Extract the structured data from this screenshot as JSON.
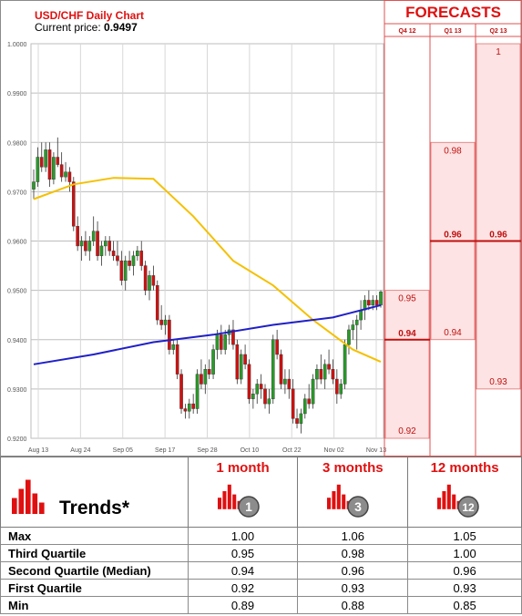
{
  "header": {
    "title": "USD/CHF Daily Chart",
    "price_label": "Current price:",
    "price_value": "0.9497",
    "forecasts_title": "FORECASTS"
  },
  "chart_data": {
    "type": "candlestick",
    "ylim": [
      0.92,
      1.0
    ],
    "y_ticks": [
      "1.0000",
      "0.9900",
      "0.9800",
      "0.9700",
      "0.9600",
      "0.9500",
      "0.9400",
      "0.9300",
      "0.9200"
    ],
    "x_ticks": [
      "Aug 13",
      "Aug 24",
      "Sep 05",
      "Sep 17",
      "Sep 28",
      "Oct 10",
      "Oct 22",
      "Nov 02",
      "Nov 13"
    ],
    "candles": [
      {
        "o": 0.9705,
        "h": 0.9745,
        "l": 0.9685,
        "c": 0.972
      },
      {
        "o": 0.972,
        "h": 0.979,
        "l": 0.971,
        "c": 0.977
      },
      {
        "o": 0.977,
        "h": 0.98,
        "l": 0.974,
        "c": 0.975
      },
      {
        "o": 0.975,
        "h": 0.98,
        "l": 0.974,
        "c": 0.9785
      },
      {
        "o": 0.9785,
        "h": 0.98,
        "l": 0.971,
        "c": 0.9725
      },
      {
        "o": 0.9725,
        "h": 0.978,
        "l": 0.9715,
        "c": 0.977
      },
      {
        "o": 0.977,
        "h": 0.981,
        "l": 0.975,
        "c": 0.9755
      },
      {
        "o": 0.9755,
        "h": 0.978,
        "l": 0.972,
        "c": 0.973
      },
      {
        "o": 0.973,
        "h": 0.976,
        "l": 0.972,
        "c": 0.974
      },
      {
        "o": 0.974,
        "h": 0.975,
        "l": 0.97,
        "c": 0.972
      },
      {
        "o": 0.972,
        "h": 0.973,
        "l": 0.962,
        "c": 0.963
      },
      {
        "o": 0.963,
        "h": 0.965,
        "l": 0.958,
        "c": 0.959
      },
      {
        "o": 0.959,
        "h": 0.961,
        "l": 0.956,
        "c": 0.96
      },
      {
        "o": 0.96,
        "h": 0.962,
        "l": 0.957,
        "c": 0.958
      },
      {
        "o": 0.958,
        "h": 0.961,
        "l": 0.956,
        "c": 0.96
      },
      {
        "o": 0.96,
        "h": 0.965,
        "l": 0.959,
        "c": 0.962
      },
      {
        "o": 0.962,
        "h": 0.964,
        "l": 0.956,
        "c": 0.957
      },
      {
        "o": 0.957,
        "h": 0.96,
        "l": 0.955,
        "c": 0.959
      },
      {
        "o": 0.959,
        "h": 0.961,
        "l": 0.957,
        "c": 0.96
      },
      {
        "o": 0.96,
        "h": 0.961,
        "l": 0.957,
        "c": 0.958
      },
      {
        "o": 0.958,
        "h": 0.96,
        "l": 0.956,
        "c": 0.957
      },
      {
        "o": 0.957,
        "h": 0.96,
        "l": 0.955,
        "c": 0.956
      },
      {
        "o": 0.956,
        "h": 0.958,
        "l": 0.951,
        "c": 0.952
      },
      {
        "o": 0.952,
        "h": 0.957,
        "l": 0.95,
        "c": 0.956
      },
      {
        "o": 0.956,
        "h": 0.958,
        "l": 0.954,
        "c": 0.955
      },
      {
        "o": 0.955,
        "h": 0.958,
        "l": 0.953,
        "c": 0.957
      },
      {
        "o": 0.957,
        "h": 0.959,
        "l": 0.956,
        "c": 0.958
      },
      {
        "o": 0.958,
        "h": 0.96,
        "l": 0.954,
        "c": 0.955
      },
      {
        "o": 0.955,
        "h": 0.956,
        "l": 0.949,
        "c": 0.95
      },
      {
        "o": 0.95,
        "h": 0.954,
        "l": 0.948,
        "c": 0.953
      },
      {
        "o": 0.953,
        "h": 0.955,
        "l": 0.95,
        "c": 0.951
      },
      {
        "o": 0.951,
        "h": 0.952,
        "l": 0.943,
        "c": 0.944
      },
      {
        "o": 0.944,
        "h": 0.947,
        "l": 0.942,
        "c": 0.943
      },
      {
        "o": 0.943,
        "h": 0.945,
        "l": 0.941,
        "c": 0.944
      },
      {
        "o": 0.944,
        "h": 0.945,
        "l": 0.937,
        "c": 0.938
      },
      {
        "o": 0.938,
        "h": 0.94,
        "l": 0.937,
        "c": 0.939
      },
      {
        "o": 0.939,
        "h": 0.94,
        "l": 0.932,
        "c": 0.933
      },
      {
        "o": 0.933,
        "h": 0.934,
        "l": 0.925,
        "c": 0.926
      },
      {
        "o": 0.926,
        "h": 0.927,
        "l": 0.924,
        "c": 0.9255
      },
      {
        "o": 0.9255,
        "h": 0.928,
        "l": 0.924,
        "c": 0.927
      },
      {
        "o": 0.927,
        "h": 0.929,
        "l": 0.925,
        "c": 0.926
      },
      {
        "o": 0.926,
        "h": 0.934,
        "l": 0.925,
        "c": 0.933
      },
      {
        "o": 0.933,
        "h": 0.936,
        "l": 0.93,
        "c": 0.931
      },
      {
        "o": 0.931,
        "h": 0.935,
        "l": 0.929,
        "c": 0.934
      },
      {
        "o": 0.934,
        "h": 0.936,
        "l": 0.932,
        "c": 0.933
      },
      {
        "o": 0.933,
        "h": 0.939,
        "l": 0.932,
        "c": 0.938
      },
      {
        "o": 0.938,
        "h": 0.942,
        "l": 0.936,
        "c": 0.941
      },
      {
        "o": 0.941,
        "h": 0.943,
        "l": 0.937,
        "c": 0.938
      },
      {
        "o": 0.938,
        "h": 0.942,
        "l": 0.937,
        "c": 0.941
      },
      {
        "o": 0.941,
        "h": 0.943,
        "l": 0.939,
        "c": 0.942
      },
      {
        "o": 0.942,
        "h": 0.944,
        "l": 0.938,
        "c": 0.939
      },
      {
        "o": 0.939,
        "h": 0.94,
        "l": 0.931,
        "c": 0.932
      },
      {
        "o": 0.932,
        "h": 0.938,
        "l": 0.931,
        "c": 0.937
      },
      {
        "o": 0.937,
        "h": 0.939,
        "l": 0.934,
        "c": 0.935
      },
      {
        "o": 0.935,
        "h": 0.936,
        "l": 0.927,
        "c": 0.928
      },
      {
        "o": 0.928,
        "h": 0.93,
        "l": 0.926,
        "c": 0.929
      },
      {
        "o": 0.929,
        "h": 0.932,
        "l": 0.927,
        "c": 0.931
      },
      {
        "o": 0.931,
        "h": 0.933,
        "l": 0.928,
        "c": 0.93
      },
      {
        "o": 0.93,
        "h": 0.931,
        "l": 0.926,
        "c": 0.927
      },
      {
        "o": 0.927,
        "h": 0.93,
        "l": 0.925,
        "c": 0.928
      },
      {
        "o": 0.928,
        "h": 0.941,
        "l": 0.927,
        "c": 0.94
      },
      {
        "o": 0.94,
        "h": 0.942,
        "l": 0.936,
        "c": 0.937
      },
      {
        "o": 0.937,
        "h": 0.938,
        "l": 0.93,
        "c": 0.931
      },
      {
        "o": 0.931,
        "h": 0.934,
        "l": 0.929,
        "c": 0.932
      },
      {
        "o": 0.932,
        "h": 0.934,
        "l": 0.928,
        "c": 0.93
      },
      {
        "o": 0.93,
        "h": 0.932,
        "l": 0.923,
        "c": 0.924
      },
      {
        "o": 0.924,
        "h": 0.926,
        "l": 0.922,
        "c": 0.923
      },
      {
        "o": 0.923,
        "h": 0.926,
        "l": 0.921,
        "c": 0.925
      },
      {
        "o": 0.925,
        "h": 0.929,
        "l": 0.924,
        "c": 0.928
      },
      {
        "o": 0.928,
        "h": 0.931,
        "l": 0.926,
        "c": 0.927
      },
      {
        "o": 0.927,
        "h": 0.933,
        "l": 0.926,
        "c": 0.932
      },
      {
        "o": 0.932,
        "h": 0.935,
        "l": 0.93,
        "c": 0.934
      },
      {
        "o": 0.934,
        "h": 0.937,
        "l": 0.931,
        "c": 0.932
      },
      {
        "o": 0.932,
        "h": 0.936,
        "l": 0.93,
        "c": 0.935
      },
      {
        "o": 0.935,
        "h": 0.938,
        "l": 0.933,
        "c": 0.934
      },
      {
        "o": 0.934,
        "h": 0.936,
        "l": 0.931,
        "c": 0.932
      },
      {
        "o": 0.932,
        "h": 0.934,
        "l": 0.927,
        "c": 0.929
      },
      {
        "o": 0.929,
        "h": 0.932,
        "l": 0.928,
        "c": 0.931
      },
      {
        "o": 0.931,
        "h": 0.94,
        "l": 0.93,
        "c": 0.939
      },
      {
        "o": 0.939,
        "h": 0.943,
        "l": 0.937,
        "c": 0.942
      },
      {
        "o": 0.942,
        "h": 0.944,
        "l": 0.94,
        "c": 0.943
      },
      {
        "o": 0.943,
        "h": 0.945,
        "l": 0.938,
        "c": 0.944
      },
      {
        "o": 0.944,
        "h": 0.948,
        "l": 0.942,
        "c": 0.946
      },
      {
        "o": 0.946,
        "h": 0.949,
        "l": 0.944,
        "c": 0.948
      },
      {
        "o": 0.948,
        "h": 0.95,
        "l": 0.946,
        "c": 0.947
      },
      {
        "o": 0.947,
        "h": 0.949,
        "l": 0.946,
        "c": 0.948
      },
      {
        "o": 0.948,
        "h": 0.949,
        "l": 0.946,
        "c": 0.947
      },
      {
        "o": 0.947,
        "h": 0.95,
        "l": 0.9465,
        "c": 0.9497
      }
    ],
    "sma_yellow": [
      [
        0,
        0.9685
      ],
      [
        10,
        0.9715
      ],
      [
        20,
        0.9728
      ],
      [
        30,
        0.9726
      ],
      [
        40,
        0.965
      ],
      [
        50,
        0.956
      ],
      [
        60,
        0.951
      ],
      [
        70,
        0.944
      ],
      [
        80,
        0.938
      ],
      [
        87,
        0.9355
      ]
    ],
    "sma_blue": [
      [
        0,
        0.935
      ],
      [
        15,
        0.937
      ],
      [
        30,
        0.9395
      ],
      [
        45,
        0.941
      ],
      [
        60,
        0.943
      ],
      [
        75,
        0.9445
      ],
      [
        87,
        0.947
      ]
    ]
  },
  "forecasts": {
    "columns": [
      "Q4 12",
      "Q1 13",
      "Q2 13"
    ],
    "ranges": [
      {
        "low": 0.92,
        "high": 0.95,
        "median": 0.94,
        "labels": [
          "0.95",
          "0.94",
          "0.92"
        ]
      },
      {
        "low": 0.94,
        "high": 0.98,
        "median": 0.96,
        "labels": [
          "0.98",
          "0.96",
          "0.94"
        ]
      },
      {
        "low": 0.93,
        "high": 1.0,
        "median": 0.96,
        "labels": [
          "1",
          "0.96",
          "0.93"
        ]
      }
    ]
  },
  "trends": {
    "label": "Trends*",
    "columns": [
      {
        "label": "1 month",
        "badge": "1"
      },
      {
        "label": "3 months",
        "badge": "3"
      },
      {
        "label": "12 months",
        "badge": "12"
      }
    ],
    "rows": [
      {
        "label": "Max",
        "values": [
          "1.00",
          "1.06",
          "1.05"
        ]
      },
      {
        "label": "Third Quartile",
        "values": [
          "0.95",
          "0.98",
          "1.00"
        ]
      },
      {
        "label": "Second Quartile (Median)",
        "values": [
          "0.94",
          "0.96",
          "0.96"
        ]
      },
      {
        "label": "First Quartile",
        "values": [
          "0.92",
          "0.93",
          "0.93"
        ]
      },
      {
        "label": "Min",
        "values": [
          "0.89",
          "0.88",
          "0.85"
        ]
      }
    ]
  },
  "colors": {
    "accent_red": "#e01010",
    "up_candle": "#2a9a2a",
    "down_candle": "#d01010",
    "sma_yellow": "#f5c000",
    "sma_blue": "#2020c8",
    "forecast_fill": "#fde3e3"
  }
}
